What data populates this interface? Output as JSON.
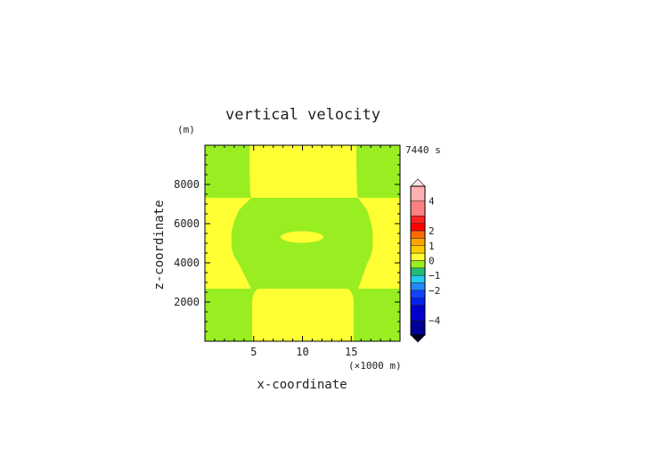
{
  "chart_data": {
    "type": "heatmap",
    "title": "vertical velocity",
    "ylabel": "z-coordinate",
    "xlabel": "x-coordinate",
    "y_unit": "(m)",
    "x_unit": "(×1000 m)",
    "time_label": "7440 s",
    "xlim": [
      0,
      20
    ],
    "ylim": [
      0,
      10000
    ],
    "x_ticks": [
      5,
      10,
      15
    ],
    "y_ticks": [
      2000,
      4000,
      6000,
      8000
    ],
    "colorbar": {
      "tick_labels": [
        {
          "value": 4,
          "text": "4"
        },
        {
          "value": 2,
          "text": "2"
        },
        {
          "value": 1,
          "text": "1"
        },
        {
          "value": 0,
          "text": "0"
        },
        {
          "value": -1,
          "text": "−1"
        },
        {
          "value": -2,
          "text": "−2"
        },
        {
          "value": -4,
          "text": "−4"
        }
      ],
      "levels": [
        {
          "range": [
            4,
            5
          ],
          "color": "#ffb0b0"
        },
        {
          "range": [
            3,
            4
          ],
          "color": "#ff8080"
        },
        {
          "range": [
            2.5,
            3
          ],
          "color": "#ff2020"
        },
        {
          "range": [
            2,
            2.5
          ],
          "color": "#ff0000"
        },
        {
          "range": [
            1.5,
            2
          ],
          "color": "#ff6a00"
        },
        {
          "range": [
            1,
            1.5
          ],
          "color": "#ffa500"
        },
        {
          "range": [
            0.5,
            1
          ],
          "color": "#ffcc00"
        },
        {
          "range": [
            0,
            0.5
          ],
          "color": "#ffff33"
        },
        {
          "range": [
            -0.5,
            0
          ],
          "color": "#99ee22"
        },
        {
          "range": [
            -1,
            -0.5
          ],
          "color": "#22bb77"
        },
        {
          "range": [
            -1.5,
            -1
          ],
          "color": "#22ccee"
        },
        {
          "range": [
            -2,
            -1.5
          ],
          "color": "#2288ff"
        },
        {
          "range": [
            -2.5,
            -2
          ],
          "color": "#1144ff"
        },
        {
          "range": [
            -3,
            -2.5
          ],
          "color": "#0022ee"
        },
        {
          "range": [
            -4,
            -3
          ],
          "color": "#0000cc"
        },
        {
          "range": [
            -5,
            -4
          ],
          "color": "#000099"
        }
      ]
    },
    "field_colors": {
      "positive": "#ffff33",
      "negative": "#99ee22"
    }
  }
}
